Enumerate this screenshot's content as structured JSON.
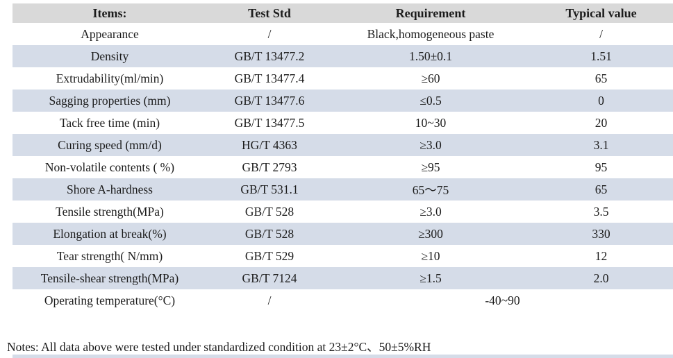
{
  "table": {
    "headers": [
      "Items:",
      "Test Std",
      "Requirement",
      "Typical value"
    ],
    "rows": [
      {
        "item": "Appearance",
        "std": "/",
        "req": "Black,homogeneous paste",
        "typ": "/"
      },
      {
        "item": "Density",
        "std": "GB/T 13477.2",
        "req": "1.50±0.1",
        "typ": "1.51"
      },
      {
        "item": "Extrudability(ml/min)",
        "std": "GB/T 13477.4",
        "req": "≥60",
        "typ": "65"
      },
      {
        "item": "Sagging properties (mm)",
        "std": "GB/T 13477.6",
        "req": "≤0.5",
        "typ": "0"
      },
      {
        "item": "Tack free time (min)",
        "std": "GB/T 13477.5",
        "req": "10~30",
        "typ": "20"
      },
      {
        "item": "Curing speed (mm/d)",
        "std": "HG/T 4363",
        "req": "≥3.0",
        "typ": "3.1"
      },
      {
        "item": "Non-volatile contents ( %)",
        "std": "GB/T 2793",
        "req": "≥95",
        "typ": "95"
      },
      {
        "item": "Shore A-hardness",
        "std": "GB/T 531.1",
        "req": "65～75",
        "typ": "65"
      },
      {
        "item": "Tensile strength(MPa)",
        "std": "GB/T 528",
        "req": "≥3.0",
        "typ": "3.5"
      },
      {
        "item": "Elongation at break(%)",
        "std": "GB/T 528",
        "req": "≥300",
        "typ": "330"
      },
      {
        "item": "Tear strength( N/mm)",
        "std": "GB/T 529",
        "req": "≥10",
        "typ": "12"
      },
      {
        "item": "Tensile-shear strength(MPa)",
        "std": "GB/T 7124",
        "req": "≥1.5",
        "typ": "2.0"
      },
      {
        "item": "Operating temperature(°C)",
        "std": "/",
        "req": "-40~90"
      }
    ]
  },
  "notes": "Notes: All data above were tested under standardized condition at 23±2°C、50±5%RH",
  "colors": {
    "header_bg": "#d9d9d9",
    "stripe_bg": "#d5dce8"
  }
}
